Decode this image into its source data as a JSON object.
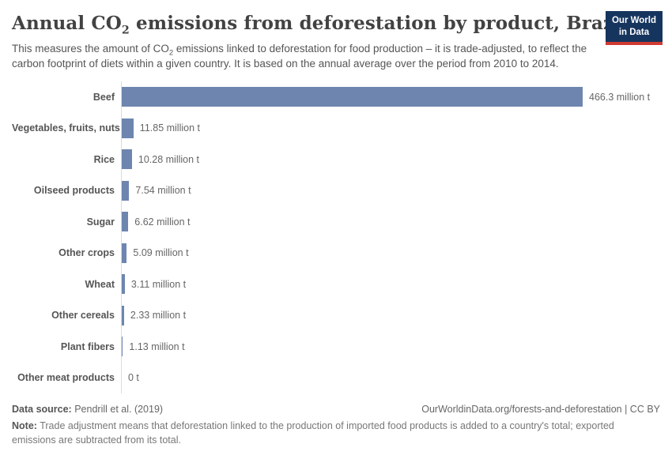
{
  "header": {
    "title_parts": {
      "pre": "Annual CO",
      "sub": "2",
      "post": " emissions from deforestation by product, Brazil"
    },
    "subtitle_parts": {
      "pre": "This measures the amount of CO",
      "sub": "2",
      "post": " emissions linked to deforestation for food production – it is trade-adjusted, to reflect the carbon footprint of diets within a given country. It is based on the annual average over the period from 2010 to 2014."
    },
    "logo": {
      "line1": "Our World",
      "line2": "in Data"
    }
  },
  "chart_data": {
    "type": "bar",
    "orientation": "horizontal",
    "title": "Annual CO2 emissions from deforestation by product, Brazil",
    "unit": "million t",
    "categories": [
      "Beef",
      "Vegetables, fruits, nuts",
      "Rice",
      "Oilseed products",
      "Sugar",
      "Other crops",
      "Wheat",
      "Other cereals",
      "Plant fibers",
      "Other meat products"
    ],
    "values": [
      466.3,
      11.85,
      10.28,
      7.54,
      6.62,
      5.09,
      3.11,
      2.33,
      1.13,
      0
    ],
    "value_labels": [
      "466.3 million t",
      "11.85 million t",
      "10.28 million t",
      "7.54 million t",
      "6.62 million t",
      "5.09 million t",
      "3.11 million t",
      "2.33 million t",
      "1.13 million t",
      "0 t"
    ],
    "xlim": [
      0,
      466.3
    ],
    "grid": false,
    "legend": "none"
  },
  "footer": {
    "datasource_label": "Data source:",
    "datasource_value": " Pendrill et al. (2019)",
    "link": "OurWorldinData.org/forests-and-deforestation | CC BY",
    "note_label": "Note:",
    "note_text": " Trade adjustment means that deforestation linked to the production of imported food products is added to a country's total; exported emissions are subtracted from its total."
  },
  "colors": {
    "bar": "#6e86af",
    "logo_background": "#16355e",
    "logo_accent_red": "#cf3b33",
    "axis_line": "#dcdcdc",
    "title_text": "#424242",
    "body_text": "#555555"
  }
}
